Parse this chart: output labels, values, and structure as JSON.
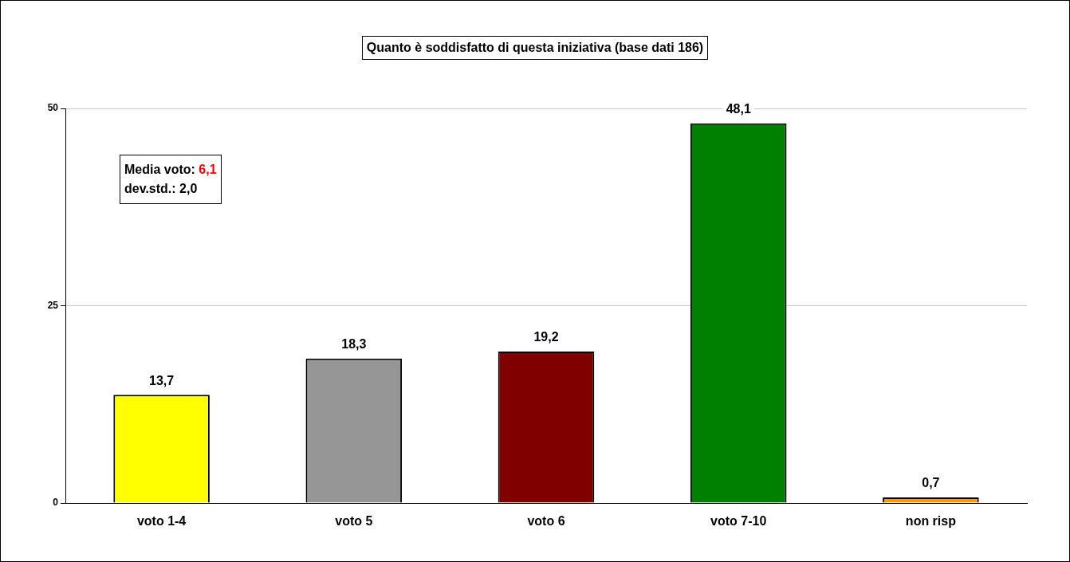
{
  "chart_data": {
    "type": "bar",
    "title": "Quanto è soddisfatto di questa iniziativa (base dati 186)",
    "categories": [
      "voto 1-4",
      "voto 5",
      "voto 6",
      "voto 7-10",
      "non risp"
    ],
    "values": [
      13.7,
      18.3,
      19.2,
      48.1,
      0.7
    ],
    "colors": [
      "#ffff00",
      "#969696",
      "#800000",
      "#008000",
      "#ff9900"
    ],
    "value_labels": [
      "13,7",
      "18,3",
      "19,2",
      "48,1",
      "0,7"
    ],
    "ylim": [
      0,
      50
    ],
    "yticks": [
      0,
      25,
      50
    ],
    "grid": "y",
    "legend": false,
    "annotations": [
      "Media voto: 6,1",
      "dev.std.: 2,0"
    ]
  }
}
